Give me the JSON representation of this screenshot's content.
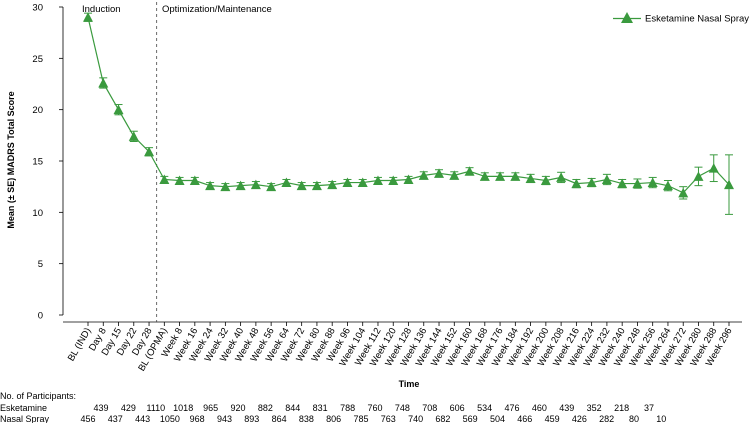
{
  "chart_data": {
    "type": "line",
    "xlabel": "Time",
    "ylabel": "Mean (± SE) MADRS Total Score",
    "ylim": [
      0,
      30
    ],
    "yticks": [
      0,
      5,
      10,
      15,
      20,
      25,
      30
    ],
    "grid": false,
    "legend_position": "top-right",
    "color": "#3a9a3e",
    "phases": [
      {
        "label": "Induction"
      },
      {
        "label": "Optimization/Maintenance"
      }
    ],
    "categories": [
      "BL (IND)",
      "Day 8",
      "Day 15",
      "Day 22",
      "Day 28",
      "BL (OPMA)",
      "Week 8",
      "Week 16",
      "Week 24",
      "Week 32",
      "Week 40",
      "Week 48",
      "Week 56",
      "Week 64",
      "Week 72",
      "Week 80",
      "Week 88",
      "Week 96",
      "Week 104",
      "Week 112",
      "Week 120",
      "Week 128",
      "Week 136",
      "Week 144",
      "Week 152",
      "Week 160",
      "Week 168",
      "Week 176",
      "Week 184",
      "Week 192",
      "Week 200",
      "Week 208",
      "Week 216",
      "Week 224",
      "Week 232",
      "Week 240",
      "Week 248",
      "Week 256",
      "Week 264",
      "Week 272",
      "Week 280",
      "Week 288",
      "Week 296"
    ],
    "series": [
      {
        "name": "Esketamine Nasal Spray",
        "values": [
          29.0,
          22.6,
          20.0,
          17.4,
          15.9,
          13.2,
          13.1,
          13.1,
          12.6,
          12.5,
          12.6,
          12.7,
          12.5,
          12.9,
          12.6,
          12.6,
          12.7,
          12.9,
          12.9,
          13.1,
          13.1,
          13.2,
          13.6,
          13.8,
          13.6,
          14.0,
          13.5,
          13.5,
          13.5,
          13.3,
          13.1,
          13.4,
          12.8,
          12.9,
          13.2,
          12.8,
          12.8,
          12.9,
          12.6,
          11.9,
          13.5,
          14.3,
          12.7
        ],
        "se": [
          0.4,
          0.5,
          0.5,
          0.5,
          0.4,
          0.3,
          0.3,
          0.3,
          0.3,
          0.3,
          0.3,
          0.3,
          0.3,
          0.3,
          0.3,
          0.3,
          0.3,
          0.3,
          0.3,
          0.3,
          0.3,
          0.3,
          0.35,
          0.35,
          0.35,
          0.35,
          0.35,
          0.35,
          0.35,
          0.4,
          0.4,
          0.5,
          0.4,
          0.4,
          0.5,
          0.4,
          0.45,
          0.5,
          0.5,
          0.6,
          0.9,
          1.3,
          2.9
        ]
      }
    ],
    "participants": {
      "heading": "No. of Participants:",
      "rows": [
        {
          "label": "Esketamine",
          "values": [
            "439",
            "429",
            "1110",
            "1018",
            "965",
            "920",
            "882",
            "844",
            "831",
            "788",
            "760",
            "748",
            "708",
            "606",
            "534",
            "476",
            "460",
            "439",
            "352",
            "218",
            "37"
          ]
        },
        {
          "label": "Nasal Spray",
          "values": [
            "456",
            "437",
            "443",
            "1050",
            "968",
            "943",
            "893",
            "864",
            "838",
            "806",
            "785",
            "763",
            "740",
            "682",
            "569",
            "504",
            "466",
            "459",
            "426",
            "282",
            "80",
            "10"
          ]
        }
      ]
    }
  }
}
